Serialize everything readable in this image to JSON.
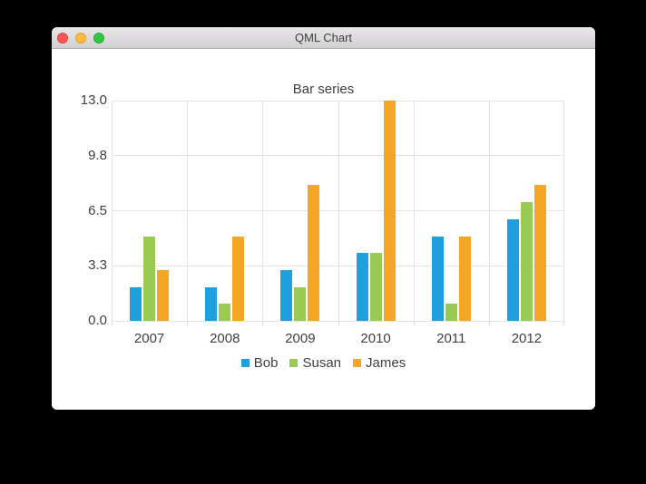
{
  "window": {
    "title": "QML Chart",
    "controls": {
      "close": "close",
      "minimize": "minimize",
      "zoom": "zoom"
    },
    "control_colors": {
      "close": "#fc5753",
      "minimize": "#fdbc40",
      "zoom": "#33c748"
    }
  },
  "chart_data": {
    "type": "bar",
    "title": "Bar series",
    "categories": [
      "2007",
      "2008",
      "2009",
      "2010",
      "2011",
      "2012"
    ],
    "series": [
      {
        "name": "Bob",
        "color": "#209fdf",
        "values": [
          2,
          2,
          3,
          4,
          5,
          6
        ]
      },
      {
        "name": "Susan",
        "color": "#99ca53",
        "values": [
          5,
          1,
          2,
          4,
          1,
          7
        ]
      },
      {
        "name": "James",
        "color": "#f6a625",
        "values": [
          3,
          5,
          8,
          13,
          5,
          8
        ]
      }
    ],
    "ylim": [
      0,
      13
    ],
    "y_ticks": [
      {
        "value": 0,
        "label": "0.0"
      },
      {
        "value": 3.25,
        "label": "3.3"
      },
      {
        "value": 6.5,
        "label": "6.5"
      },
      {
        "value": 9.75,
        "label": "9.8"
      },
      {
        "value": 13,
        "label": "13.0"
      }
    ],
    "grid": true,
    "legend_position": "bottom",
    "grid_color": "#e4e4e4",
    "label_color": "#3f3f42"
  }
}
